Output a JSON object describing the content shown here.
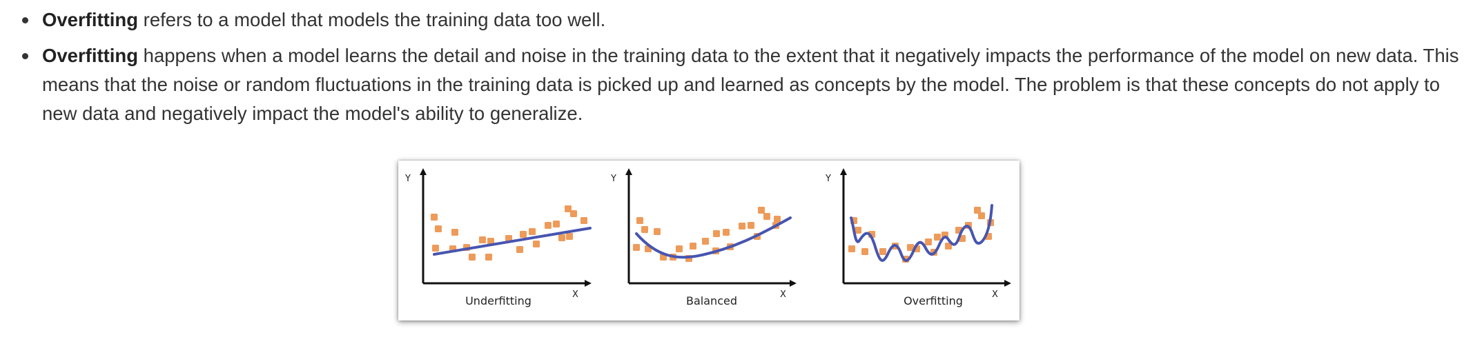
{
  "bullets": [
    {
      "bold": "Overfitting",
      "text": " refers to a model that models the training data too well."
    },
    {
      "bold": "Overfitting",
      "text": " happens when a model learns the detail and noise in the training data to the extent that it negatively impacts the performance of the model on new data. This means that the noise or random fluctuations in the training data is picked up and learned as concepts by the model. The problem is that these concepts do not apply to new data and negatively impact the model's ability to generalize."
    }
  ],
  "figure": {
    "panels": [
      {
        "label": "Underfitting",
        "y_axis": "Y",
        "x_axis": "X"
      },
      {
        "label": "Balanced",
        "y_axis": "Y",
        "x_axis": "X"
      },
      {
        "label": "Overfitting",
        "y_axis": "Y",
        "x_axis": "X"
      }
    ],
    "colors": {
      "points": "#ee9b5a",
      "fit_line": "#4755b0",
      "axis": "#111111"
    }
  }
}
